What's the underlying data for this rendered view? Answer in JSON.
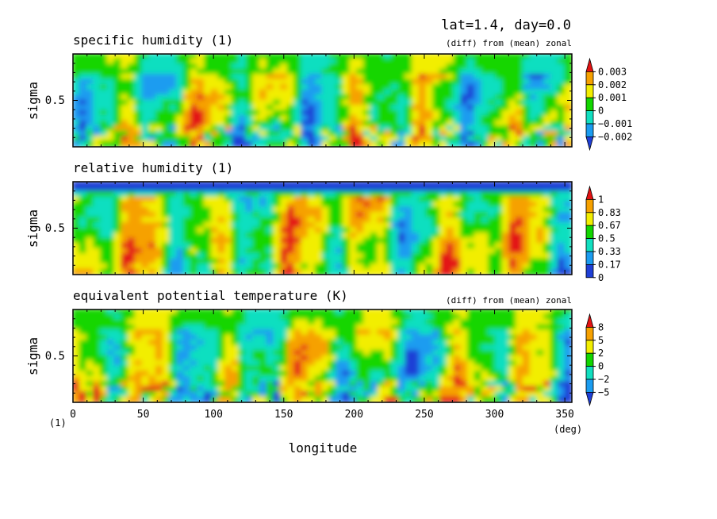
{
  "header": {
    "title": "lat=1.4, day=0.0"
  },
  "x_axis": {
    "label": "longitude",
    "unit": "(deg)",
    "origin_unit": "(1)",
    "range": [
      0,
      355
    ],
    "ticks": [
      0,
      50,
      100,
      150,
      200,
      250,
      300,
      350
    ]
  },
  "chart_data": [
    {
      "type": "heatmap",
      "title": "specific humidity (1)",
      "subtitle": "(diff) from (mean) zonal",
      "ylabel": "sigma",
      "yticks": [
        0.5
      ],
      "ylim": [
        1.0,
        0.0
      ],
      "xlim": [
        0,
        355
      ],
      "colorbar": {
        "levels": [
          "0.003",
          "0.002",
          "0.001",
          "0",
          "−0.001",
          "−0.002"
        ],
        "colors": [
          "#1f3fd6",
          "#1a9cf0",
          "#11dfc0",
          "#12d600",
          "#f2ee00",
          "#f6a100",
          "#e31212"
        ],
        "extend": "both"
      }
    },
    {
      "type": "heatmap",
      "title": "relative humidity (1)",
      "subtitle": "",
      "ylabel": "sigma",
      "yticks": [
        0.5
      ],
      "ylim": [
        1.0,
        0.0
      ],
      "xlim": [
        0,
        355
      ],
      "colorbar": {
        "levels": [
          "1",
          "0.83",
          "0.67",
          "0.5",
          "0.33",
          "0.17",
          "0"
        ],
        "colors": [
          "#1f3fd6",
          "#1a9cf0",
          "#11dfc0",
          "#12d600",
          "#f2ee00",
          "#f6a100",
          "#e31212"
        ],
        "extend": "max"
      }
    },
    {
      "type": "heatmap",
      "title": "equivalent potential temperature (K)",
      "subtitle": "(diff) from (mean) zonal",
      "ylabel": "sigma",
      "yticks": [
        0.5
      ],
      "ylim": [
        1.0,
        0.0
      ],
      "xlim": [
        0,
        355
      ],
      "colorbar": {
        "levels": [
          "8",
          "5",
          "2",
          "0",
          "−2",
          "−5"
        ],
        "colors": [
          "#1f3fd6",
          "#1a9cf0",
          "#11dfc0",
          "#12d600",
          "#f2ee00",
          "#f6a100",
          "#e31212"
        ],
        "extend": "both"
      }
    }
  ]
}
